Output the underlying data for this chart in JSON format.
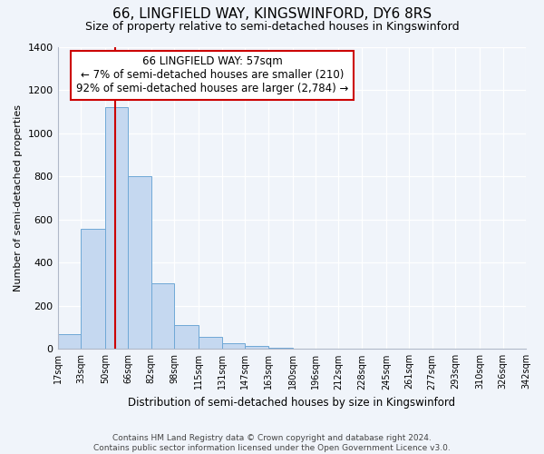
{
  "title": "66, LINGFIELD WAY, KINGSWINFORD, DY6 8RS",
  "subtitle": "Size of property relative to semi-detached houses in Kingswinford",
  "xlabel": "Distribution of semi-detached houses by size in Kingswinford",
  "ylabel": "Number of semi-detached properties",
  "footer1": "Contains HM Land Registry data © Crown copyright and database right 2024.",
  "footer2": "Contains public sector information licensed under the Open Government Licence v3.0.",
  "annotation_title": "66 LINGFIELD WAY: 57sqm",
  "annotation_line1": "← 7% of semi-detached houses are smaller (210)",
  "annotation_line2": "92% of semi-detached houses are larger (2,784) →",
  "property_size_sqm": 57,
  "bin_labels": [
    "17sqm",
    "33sqm",
    "50sqm",
    "66sqm",
    "82sqm",
    "98sqm",
    "115sqm",
    "131sqm",
    "147sqm",
    "163sqm",
    "180sqm",
    "196sqm",
    "212sqm",
    "228sqm",
    "245sqm",
    "261sqm",
    "277sqm",
    "293sqm",
    "310sqm",
    "326sqm",
    "342sqm"
  ],
  "bin_edges": [
    17,
    33,
    50,
    66,
    82,
    98,
    115,
    131,
    147,
    163,
    180,
    196,
    212,
    228,
    245,
    261,
    277,
    293,
    310,
    326,
    342
  ],
  "bar_values": [
    70,
    555,
    1120,
    800,
    305,
    110,
    55,
    25,
    15,
    5,
    2,
    0,
    0,
    0,
    0,
    0,
    0,
    0,
    0,
    0
  ],
  "bar_color": "#c5d8f0",
  "bar_edge_color": "#6fa8d6",
  "vline_color": "#cc0000",
  "vline_x": 57,
  "annotation_box_color": "#ffffff",
  "annotation_box_edge": "#cc0000",
  "bg_color": "#f0f4fa",
  "plot_bg_color": "#f0f4fa",
  "ylim": [
    0,
    1400
  ],
  "yticks": [
    0,
    200,
    400,
    600,
    800,
    1000,
    1200,
    1400
  ],
  "title_fontsize": 11,
  "subtitle_fontsize": 9
}
